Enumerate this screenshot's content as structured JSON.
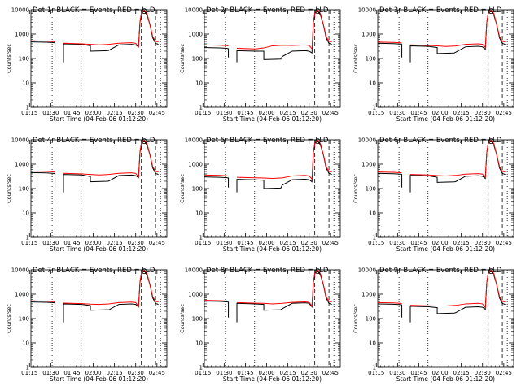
{
  "panel_text": {
    "ylabel": "Counts/sec",
    "xlabel": "Start Time (04-Feb-06 01:12:20)",
    "x_ticks": [
      "01:15",
      "01:30",
      "01:45",
      "02:00",
      "02:15",
      "02:30",
      "02:45"
    ],
    "y_ticks": [
      "10000",
      "1000",
      "100",
      "10",
      "1"
    ]
  },
  "chart_data": [
    {
      "type": "line",
      "title": "Det 1r BLACK = Events, RED = LLD",
      "ylim": [
        1,
        10000
      ],
      "yscale": "log",
      "grid": false,
      "marker": "o",
      "series": [
        {
          "name": "BLACK = Events",
          "color": "#000000",
          "levels": [
            480,
            400,
            330,
            200,
            360,
            300
          ]
        },
        {
          "name": "RED = LLD",
          "color": "#ff0000",
          "levels": [
            530,
            420,
            380,
            360,
            420,
            300
          ]
        }
      ]
    },
    {
      "type": "line",
      "title": "Det 2r BLACK = Events, RED = LLD",
      "ylim": [
        1,
        10000
      ],
      "yscale": "log",
      "grid": false,
      "marker": "o",
      "series": [
        {
          "name": "BLACK = Events",
          "color": "#000000",
          "levels": [
            280,
            210,
            200,
            90,
            200,
            170
          ]
        },
        {
          "name": "RED = LLD",
          "color": "#ff0000",
          "levels": [
            360,
            260,
            270,
            330,
            340,
            250
          ]
        }
      ]
    },
    {
      "type": "line",
      "title": "Det 3r BLACK = Events, RED = LLD",
      "ylim": [
        1,
        10000
      ],
      "yscale": "log",
      "grid": false,
      "marker": "o",
      "series": [
        {
          "name": "BLACK = Events",
          "color": "#000000",
          "levels": [
            420,
            330,
            280,
            160,
            300,
            240
          ]
        },
        {
          "name": "RED = LLD",
          "color": "#ff0000",
          "levels": [
            470,
            360,
            330,
            310,
            380,
            280
          ]
        }
      ]
    },
    {
      "type": "line",
      "title": "Det 4r BLACK = Events, RED = LLD",
      "ylim": [
        1,
        10000
      ],
      "yscale": "log",
      "grid": false,
      "marker": "o",
      "series": [
        {
          "name": "BLACK = Events",
          "color": "#000000",
          "levels": [
            450,
            380,
            310,
            190,
            340,
            280
          ]
        },
        {
          "name": "RED = LLD",
          "color": "#ff0000",
          "levels": [
            520,
            420,
            380,
            360,
            420,
            300
          ]
        }
      ]
    },
    {
      "type": "line",
      "title": "Det 5r BLACK = Events, RED = LLD",
      "ylim": [
        1,
        10000
      ],
      "yscale": "log",
      "grid": false,
      "marker": "o",
      "series": [
        {
          "name": "BLACK = Events",
          "color": "#000000",
          "levels": [
            300,
            240,
            220,
            100,
            230,
            190
          ]
        },
        {
          "name": "RED = LLD",
          "color": "#ff0000",
          "levels": [
            360,
            290,
            270,
            260,
            330,
            250
          ]
        }
      ]
    },
    {
      "type": "line",
      "title": "Det 6r BLACK = Events, RED = LLD",
      "ylim": [
        1,
        10000
      ],
      "yscale": "log",
      "grid": false,
      "marker": "o",
      "series": [
        {
          "name": "BLACK = Events",
          "color": "#000000",
          "levels": [
            420,
            350,
            290,
            180,
            320,
            260
          ]
        },
        {
          "name": "RED = LLD",
          "color": "#ff0000",
          "levels": [
            480,
            380,
            340,
            330,
            390,
            290
          ]
        }
      ]
    },
    {
      "type": "line",
      "title": "Det 7r BLACK = Events, RED = LLD",
      "ylim": [
        1,
        10000
      ],
      "yscale": "log",
      "grid": false,
      "marker": "o",
      "series": [
        {
          "name": "BLACK = Events",
          "color": "#000000",
          "levels": [
            480,
            400,
            340,
            220,
            380,
            300
          ]
        },
        {
          "name": "RED = LLD",
          "color": "#ff0000",
          "levels": [
            530,
            430,
            390,
            380,
            450,
            320
          ]
        }
      ]
    },
    {
      "type": "line",
      "title": "Det 8r BLACK = Events, RED = LLD",
      "ylim": [
        1,
        10000
      ],
      "yscale": "log",
      "grid": false,
      "marker": "o",
      "series": [
        {
          "name": "BLACK = Events",
          "color": "#000000",
          "levels": [
            520,
            420,
            380,
            220,
            420,
            300
          ]
        },
        {
          "name": "RED = LLD",
          "color": "#ff0000",
          "levels": [
            560,
            450,
            420,
            400,
            460,
            330
          ]
        }
      ]
    },
    {
      "type": "line",
      "title": "Det 9r BLACK = Events, RED = LLD",
      "ylim": [
        1,
        10000
      ],
      "yscale": "log",
      "grid": false,
      "marker": "o",
      "series": [
        {
          "name": "BLACK = Events",
          "color": "#000000",
          "levels": [
            400,
            320,
            280,
            160,
            290,
            240
          ]
        },
        {
          "name": "RED = LLD",
          "color": "#ff0000",
          "levels": [
            450,
            350,
            330,
            330,
            400,
            280
          ]
        }
      ]
    }
  ]
}
